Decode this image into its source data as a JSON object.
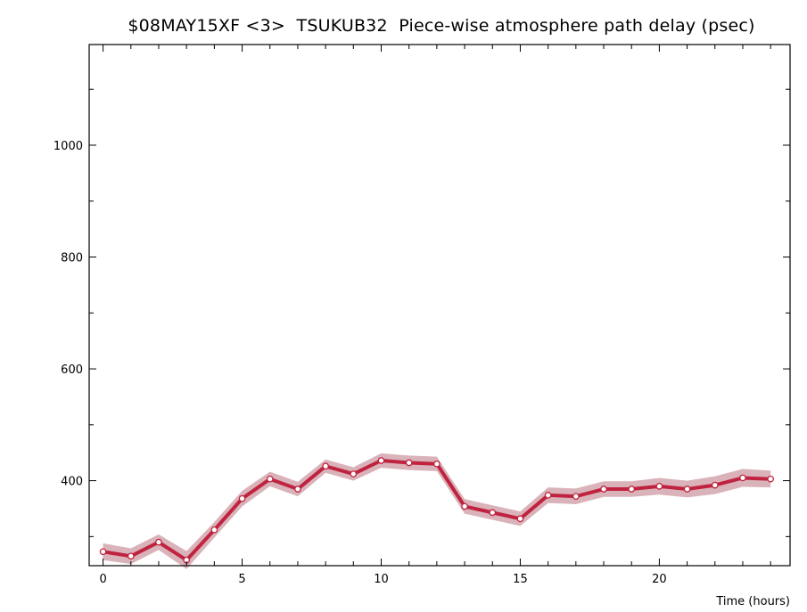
{
  "chart_data": {
    "type": "line",
    "title": "$08MAY15XF <3>  TSUKUB32  Piece-wise atmosphere path delay (psec)",
    "xlabel": "Time (hours)",
    "ylabel": "",
    "xlim": [
      -0.5,
      24.7
    ],
    "ylim": [
      248,
      1180
    ],
    "xticks": [
      0,
      5,
      10,
      15,
      20
    ],
    "yticks": [
      400,
      600,
      800,
      1000
    ],
    "grid": false,
    "colors": {
      "line": "#c0233f",
      "band": "#d9b3b9",
      "marker_fill": "#ffffff"
    },
    "series": [
      {
        "x": [
          0,
          1,
          2,
          3,
          4,
          5,
          6,
          7,
          8,
          9,
          10,
          11,
          12,
          13,
          14,
          15,
          16,
          17,
          18,
          19,
          20,
          21,
          22,
          23,
          24
        ],
        "values": [
          273,
          265,
          290,
          258,
          312,
          368,
          403,
          385,
          426,
          412,
          436,
          432,
          430,
          354,
          343,
          332,
          374,
          372,
          385,
          385,
          390,
          385,
          392,
          405,
          403
        ],
        "error": [
          15,
          14,
          14,
          16,
          14,
          14,
          13,
          13,
          12,
          12,
          13,
          13,
          13,
          13,
          13,
          13,
          14,
          14,
          14,
          14,
          15,
          15,
          16,
          16,
          15
        ]
      }
    ]
  }
}
